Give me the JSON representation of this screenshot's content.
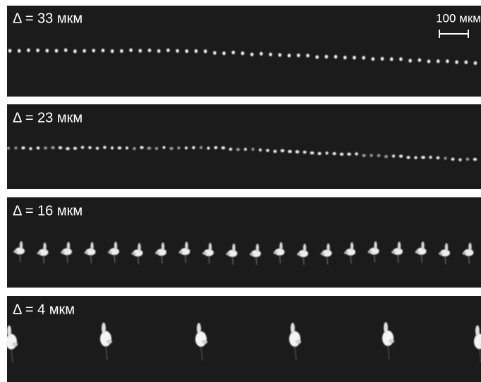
{
  "panels": [
    {
      "label": "Δ = 33 мкм"
    },
    {
      "label": "Δ = 23 мкм"
    },
    {
      "label": "Δ = 16 мкм"
    },
    {
      "label": "Δ = 4 мкм"
    }
  ],
  "scale_bar": {
    "label": "100 мкм"
  }
}
